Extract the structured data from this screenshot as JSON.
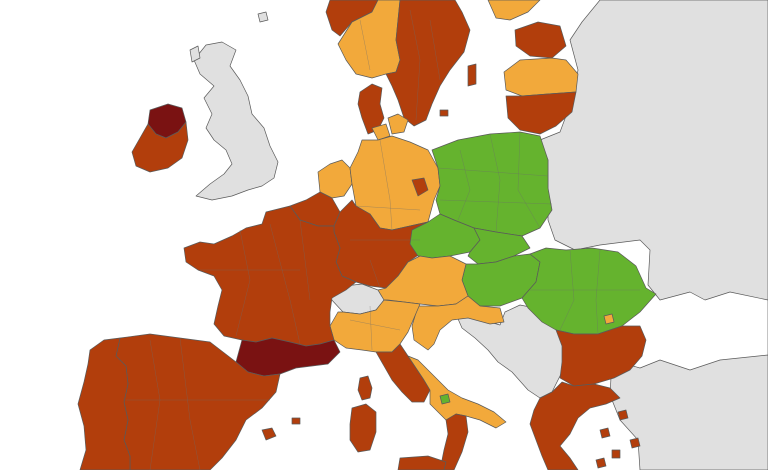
{
  "colors": {
    "sea": "#ffffff",
    "non_eu": "#e0e0e0",
    "green": "#65b32e",
    "orange": "#f2a93b",
    "red": "#b23e0c",
    "dark_red": "#7a1212"
  },
  "legend_categories": [
    "green",
    "orange",
    "red",
    "dark_red",
    "grey"
  ],
  "regions": [
    {
      "id": "norway-north",
      "zone": "red"
    },
    {
      "id": "norway-south",
      "zone": "orange"
    },
    {
      "id": "sweden",
      "zone": "red"
    },
    {
      "id": "finland-region",
      "zone": "orange"
    },
    {
      "id": "estonia",
      "zone": "red"
    },
    {
      "id": "latvia",
      "zone": "orange"
    },
    {
      "id": "lithuania",
      "zone": "red"
    },
    {
      "id": "ireland-north",
      "zone": "dark_red"
    },
    {
      "id": "ireland",
      "zone": "red"
    },
    {
      "id": "denmark-jutland",
      "zone": "red"
    },
    {
      "id": "denmark-islands",
      "zone": "orange"
    },
    {
      "id": "netherlands",
      "zone": "orange"
    },
    {
      "id": "belgium",
      "zone": "red"
    },
    {
      "id": "germany-west",
      "zone": "red"
    },
    {
      "id": "germany-north-east",
      "zone": "orange"
    },
    {
      "id": "berlin",
      "zone": "red"
    },
    {
      "id": "poland",
      "zone": "green"
    },
    {
      "id": "czechia",
      "zone": "green"
    },
    {
      "id": "slovakia",
      "zone": "green"
    },
    {
      "id": "hungary",
      "zone": "green"
    },
    {
      "id": "romania",
      "zone": "green"
    },
    {
      "id": "bucharest",
      "zone": "orange"
    },
    {
      "id": "austria",
      "zone": "orange"
    },
    {
      "id": "france",
      "zone": "red"
    },
    {
      "id": "occitanie",
      "zone": "dark_red"
    },
    {
      "id": "italy-north",
      "zone": "orange"
    },
    {
      "id": "italy-central",
      "zone": "red"
    },
    {
      "id": "italy-south",
      "zone": "orange"
    },
    {
      "id": "calabria",
      "zone": "red"
    },
    {
      "id": "sicily",
      "zone": "red"
    },
    {
      "id": "sardinia",
      "zone": "red"
    },
    {
      "id": "corsica",
      "zone": "red"
    },
    {
      "id": "croatia",
      "zone": "orange"
    },
    {
      "id": "spain",
      "zone": "red"
    },
    {
      "id": "portugal",
      "zone": "red"
    },
    {
      "id": "bulgaria",
      "zone": "red"
    },
    {
      "id": "greece",
      "zone": "red"
    },
    {
      "id": "switzerland",
      "zone": "grey"
    },
    {
      "id": "uk",
      "zone": "grey"
    }
  ]
}
